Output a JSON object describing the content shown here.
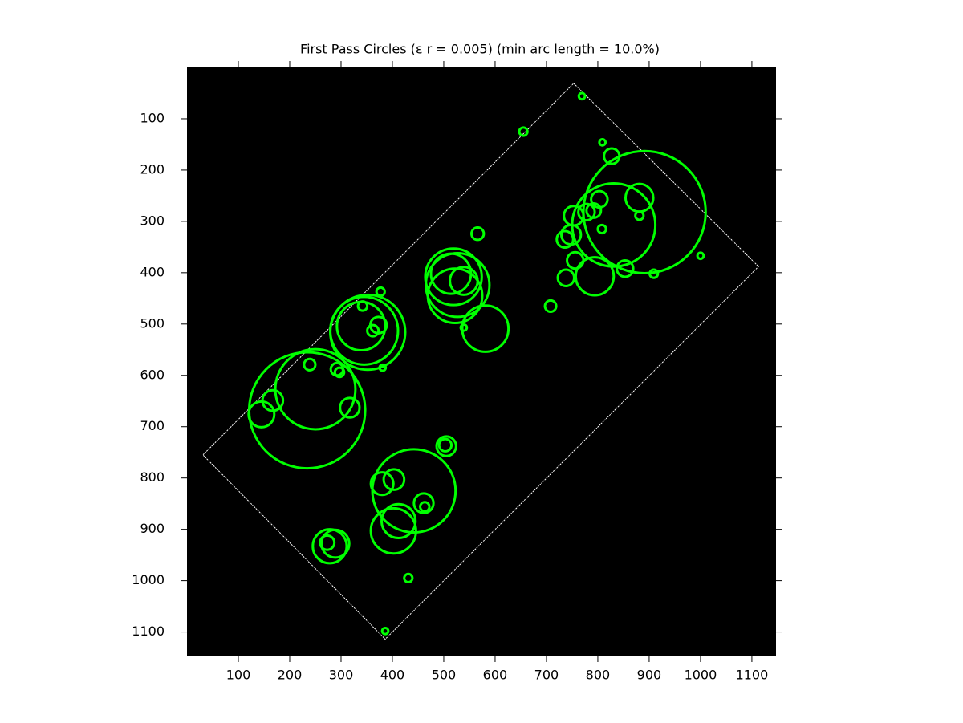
{
  "chart_data": {
    "type": "circles",
    "title": "First Pass Circles (ε r = 0.005) (min arc length = 10.0%)",
    "color": "#00ff00",
    "background": "#000000",
    "xlim": [
      0,
      1147
    ],
    "ylim": [
      1146,
      0
    ],
    "xticks": [
      100,
      200,
      300,
      400,
      500,
      600,
      700,
      800,
      900,
      1000,
      1100
    ],
    "yticks": [
      100,
      200,
      300,
      400,
      500,
      600,
      700,
      800,
      900,
      1000,
      1100
    ],
    "outline": {
      "color": "#ffffff",
      "x": [
        753,
        1113,
        386,
        31
      ],
      "y": [
        31,
        388,
        1114,
        755
      ]
    },
    "x": [
      769,
      655,
      809,
      827,
      891,
      831,
      881,
      881,
      803,
      792,
      778,
      753,
      748,
      736,
      808,
      853,
      794,
      756,
      738,
      708,
      909,
      1000,
      566,
      527,
      519,
      522,
      514,
      539,
      581,
      539,
      352,
      345,
      339,
      373,
      362,
      377,
      342,
      381,
      234,
      250,
      167,
      145,
      239,
      292,
      297,
      317,
      442,
      380,
      403,
      402,
      412,
      461,
      463,
      505,
      503,
      289,
      278,
      273,
      431,
      386
    ],
    "y": [
      56,
      125,
      146,
      173,
      282,
      307,
      254,
      289,
      257,
      279,
      282,
      289,
      326,
      335,
      315,
      392,
      407,
      376,
      410,
      465,
      402,
      367,
      324,
      424,
      408,
      445,
      402,
      416,
      509,
      507,
      516,
      513,
      504,
      502,
      513,
      437,
      465,
      585,
      668,
      627,
      649,
      676,
      579,
      588,
      594,
      663,
      825,
      811,
      803,
      903,
      884,
      849,
      856,
      738,
      736,
      928,
      933,
      926,
      995,
      1098
    ],
    "r": [
      6,
      8,
      6,
      15,
      119,
      81,
      27,
      8,
      16,
      14,
      16,
      19,
      19,
      16,
      8,
      16,
      37,
      16,
      16,
      11,
      8,
      6,
      12,
      62,
      55,
      53,
      39,
      27,
      45,
      6,
      73,
      66,
      47,
      16,
      11,
      8,
      9,
      6,
      113,
      78,
      20,
      25,
      11,
      12,
      9,
      19,
      81,
      22,
      20,
      44,
      33,
      19,
      9,
      19,
      12,
      27,
      33,
      14,
      8,
      6
    ]
  }
}
